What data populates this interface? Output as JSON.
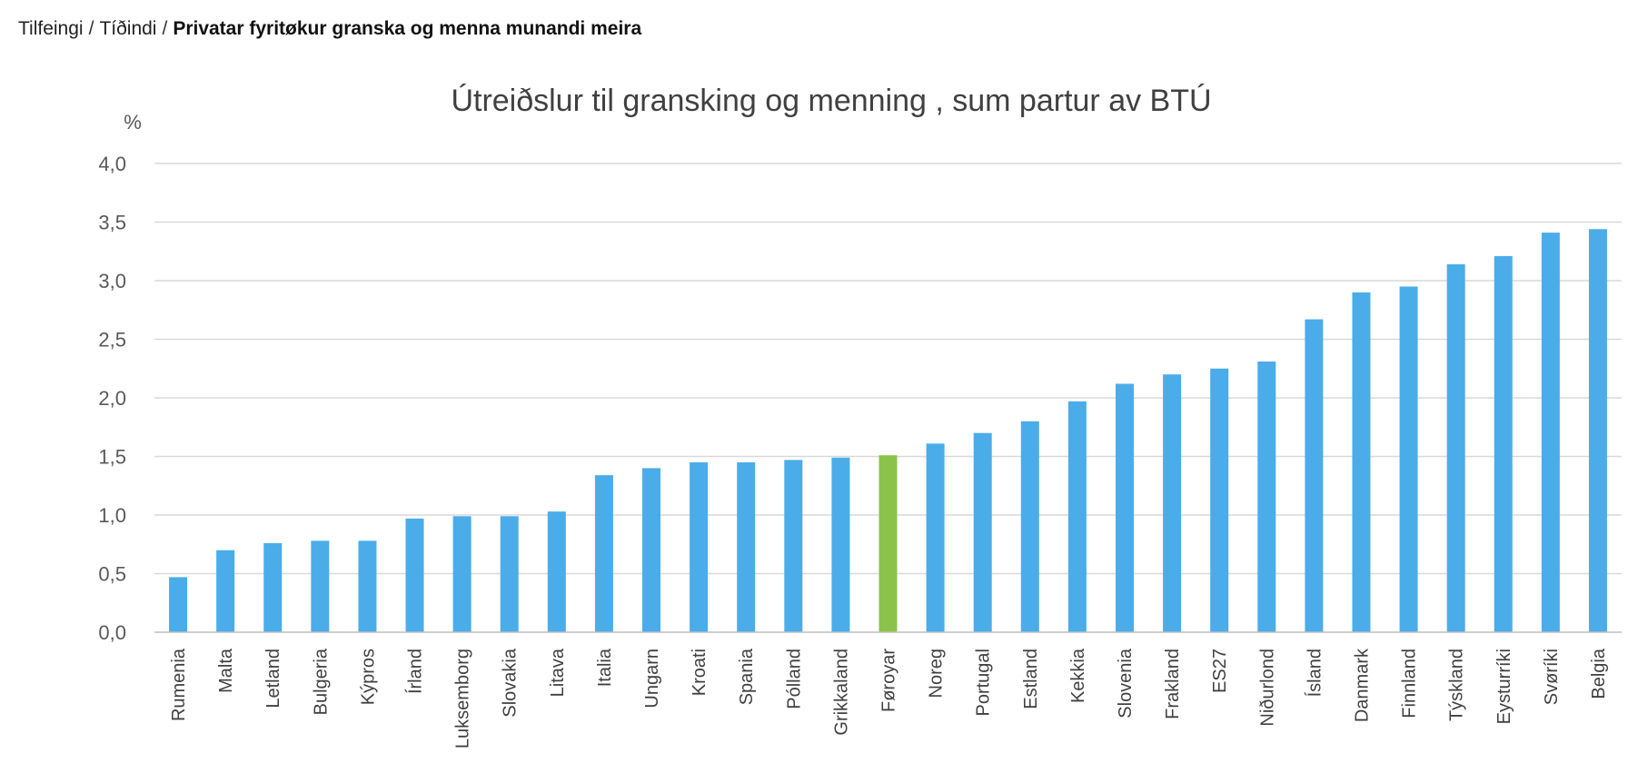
{
  "breadcrumb": {
    "items": [
      "Tilfeingi",
      "Tíðindi"
    ],
    "current": "Privatar fyritøkur granska og menna munandi meira"
  },
  "colors": {
    "bar": "#4bacea",
    "highlight": "#8bc34a"
  },
  "chart_data": {
    "type": "bar",
    "title": "Útreiðslur til gransking og menning , sum partur av BTÚ",
    "xlabel": "",
    "ylabel": "%",
    "ylim": [
      0,
      4.0
    ],
    "yticks": [
      "0,0",
      "0,5",
      "1,0",
      "1,5",
      "2,0",
      "2,5",
      "3,0",
      "3,5",
      "4,0"
    ],
    "grid": true,
    "highlight": "Føroyar",
    "categories": [
      "Rumenia",
      "Malta",
      "Letland",
      "Bulgeria",
      "Kýpros",
      "Írland",
      "Luksemborg",
      "Slovakia",
      "Litava",
      "Italia",
      "Ungarn",
      "Kroati",
      "Spania",
      "Pólland",
      "Grikkaland",
      "Føroyar",
      "Noreg",
      "Portugal",
      "Estland",
      "Kekkia",
      "Slovenia",
      "Frakland",
      "ES27",
      "Niðurlond",
      "Ísland",
      "Danmark",
      "Finnland",
      "Týskland",
      "Eysturríki",
      "Svøríki",
      "Belgia"
    ],
    "values": [
      0.47,
      0.7,
      0.76,
      0.78,
      0.78,
      0.97,
      0.99,
      0.99,
      1.03,
      1.34,
      1.4,
      1.45,
      1.45,
      1.47,
      1.49,
      1.51,
      1.61,
      1.7,
      1.8,
      1.97,
      2.12,
      2.2,
      2.25,
      2.31,
      2.67,
      2.9,
      2.95,
      3.14,
      3.21,
      3.41,
      3.44
    ]
  }
}
